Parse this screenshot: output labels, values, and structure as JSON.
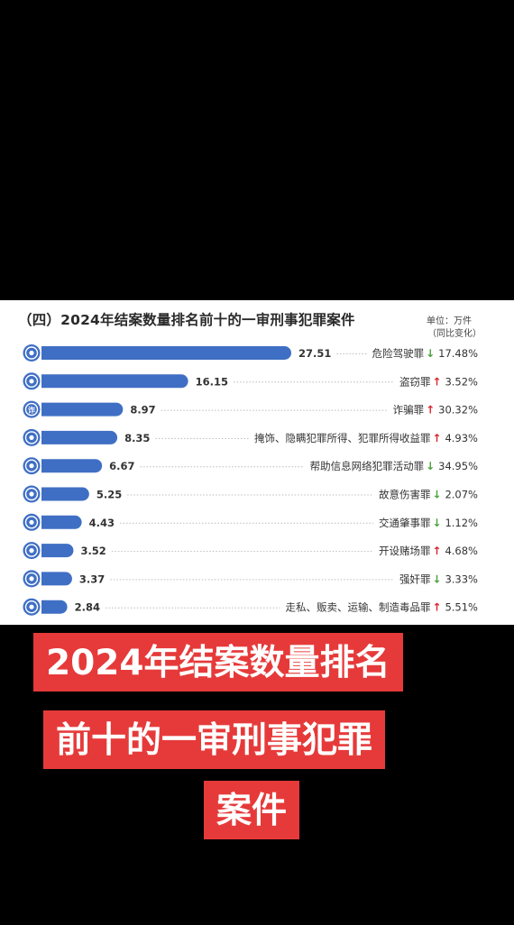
{
  "header": {
    "title": "（四）2024年结案数量排名前十的一审刑事犯罪案件",
    "unit": "单位：万件",
    "change_note": "（同比变化）"
  },
  "chart_data": {
    "type": "bar",
    "orientation": "horizontal",
    "title": "（四）2024年结案数量排名前十的一审刑事犯罪案件",
    "unit": "单位：万件",
    "categories": [
      "危险驾驶罪",
      "盗窃罪",
      "诈骗罪",
      "掩饰、隐瞒犯罪所得、犯罪所得收益罪",
      "帮助信息网络犯罪活动罪",
      "故意伤害罪",
      "交通肇事罪",
      "开设赌场罪",
      "强奸罪",
      "走私、贩卖、运输、制造毒品罪"
    ],
    "values": [
      27.51,
      16.15,
      8.97,
      8.35,
      6.67,
      5.25,
      4.43,
      3.52,
      3.37,
      2.84
    ],
    "value_labels": [
      "27.51",
      "16.15",
      "8.97",
      "8.35",
      "6.67",
      "5.25",
      "4.43",
      "3.52",
      "3.37",
      "2.84"
    ],
    "change_direction": [
      "down",
      "up",
      "up",
      "up",
      "down",
      "down",
      "down",
      "up",
      "down",
      "up"
    ],
    "change_arrows": [
      "↓",
      "↑",
      "↑",
      "↑",
      "↓",
      "↓",
      "↓",
      "↑",
      "↓",
      "↑"
    ],
    "change_labels": [
      "17.48%",
      "3.52%",
      "30.32%",
      "4.93%",
      "34.95%",
      "2.07%",
      "1.12%",
      "4.68%",
      "3.33%",
      "5.51%"
    ],
    "icons": [
      "no-drink-driving-icon",
      "theft-icon",
      "fraud-icon",
      "money-bag-icon",
      "globe-network-icon",
      "knife-icon",
      "car-crash-icon",
      "gambling-icon",
      "handcuffs-icon",
      "drugs-icon"
    ],
    "icon_glyphs": [
      "",
      "",
      "诈",
      "",
      "",
      "",
      "",
      "",
      "",
      ""
    ],
    "colors": {
      "bar": "#3f6fc4",
      "icon": "#3f6fc4",
      "up": "#d9262c",
      "down": "#4aa23a",
      "text": "#333333",
      "dots": "#bbbbbb"
    },
    "xlim": [
      0,
      28
    ],
    "grid": false,
    "legend": "none"
  },
  "caption": {
    "lines": [
      "2024年结案数量排名",
      "前十的一审刑事犯罪",
      "案件"
    ],
    "background": "#e63a3a"
  }
}
